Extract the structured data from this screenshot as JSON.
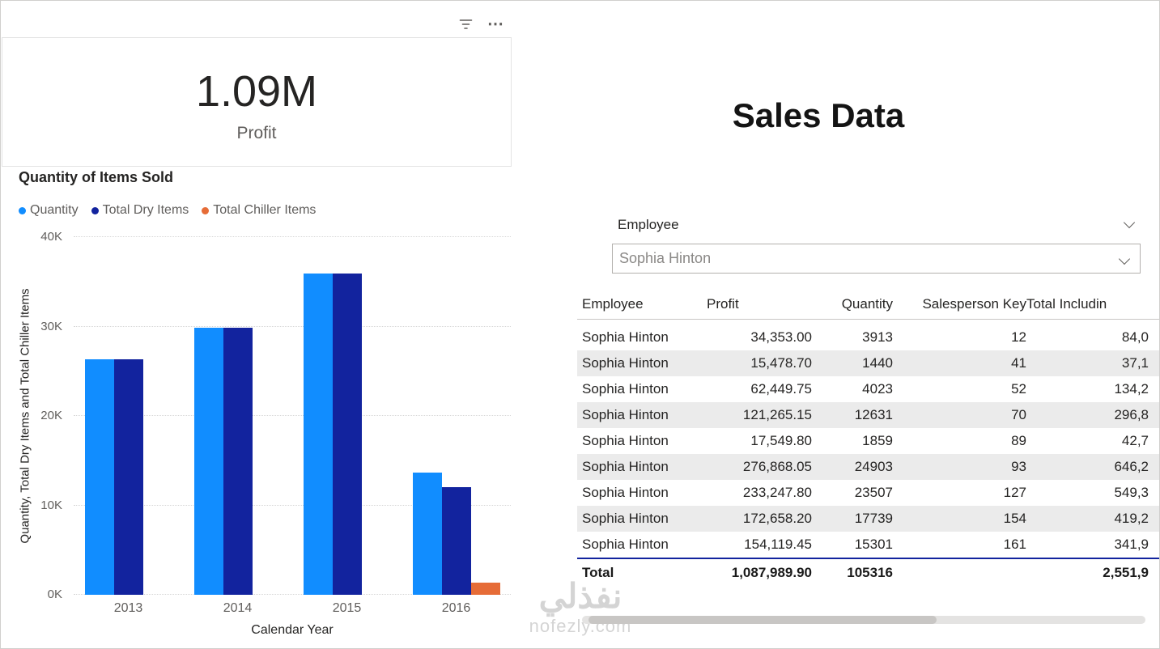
{
  "icons": {
    "more_options": "⋯"
  },
  "kpi": {
    "value": "1.09M",
    "label": "Profit"
  },
  "chart_data": {
    "type": "bar",
    "title": "Quantity of Items Sold",
    "categories": [
      "2013",
      "2014",
      "2015",
      "2016"
    ],
    "series": [
      {
        "name": "Quantity",
        "color": "#118DFF",
        "values": [
          26300,
          29900,
          35900,
          13700
        ]
      },
      {
        "name": "Total Dry Items",
        "color": "#12239E",
        "values": [
          26300,
          29900,
          35900,
          12000
        ]
      },
      {
        "name": "Total Chiller Items",
        "color": "#E66C37",
        "values": [
          0,
          0,
          0,
          1400
        ]
      }
    ],
    "xlabel": "Calendar Year",
    "ylabel": "Quantity, Total Dry Items and Total Chiller Items",
    "ylim": [
      0,
      40000
    ],
    "yticks": [
      "0K",
      "10K",
      "20K",
      "30K",
      "40K"
    ],
    "grid": true,
    "legend_position": "top"
  },
  "right": {
    "title": "Sales Data",
    "slicer": {
      "label": "Employee",
      "value": "Sophia Hinton"
    },
    "table": {
      "accent_color": "#12239E",
      "columns": [
        "Employee",
        "Profit",
        "Quantity",
        "Salesperson Key",
        "Total Includin"
      ],
      "rows": [
        [
          "Sophia Hinton",
          "34,353.00",
          "3913",
          "12",
          "84,0"
        ],
        [
          "Sophia Hinton",
          "15,478.70",
          "1440",
          "41",
          "37,1"
        ],
        [
          "Sophia Hinton",
          "62,449.75",
          "4023",
          "52",
          "134,2"
        ],
        [
          "Sophia Hinton",
          "121,265.15",
          "12631",
          "70",
          "296,8"
        ],
        [
          "Sophia Hinton",
          "17,549.80",
          "1859",
          "89",
          "42,7"
        ],
        [
          "Sophia Hinton",
          "276,868.05",
          "24903",
          "93",
          "646,2"
        ],
        [
          "Sophia Hinton",
          "233,247.80",
          "23507",
          "127",
          "549,3"
        ],
        [
          "Sophia Hinton",
          "172,658.20",
          "17739",
          "154",
          "419,2"
        ],
        [
          "Sophia Hinton",
          "154,119.45",
          "15301",
          "161",
          "341,9"
        ]
      ],
      "total": [
        "Total",
        "1,087,989.90",
        "105316",
        "",
        "2,551,9"
      ]
    }
  },
  "watermark": {
    "text": "نفذلي",
    "domain": "nofezly.com"
  }
}
